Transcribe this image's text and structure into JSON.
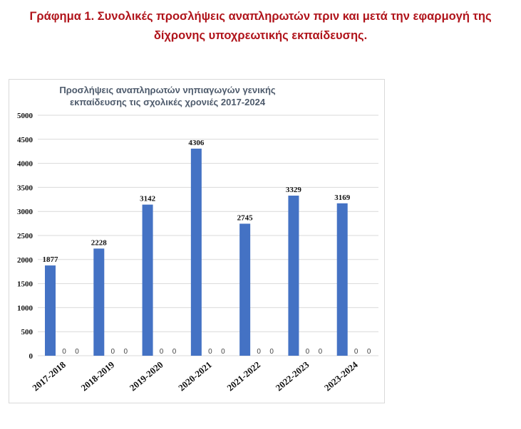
{
  "caption": {
    "line1": "Γράφημα 1. Συνολικές προσλήψεις αναπληρωτών πριν και μετά την εφαρμογή της",
    "line2": "δίχρονης υποχρεωτικής εκπαίδευσης."
  },
  "colors": {
    "caption": "#b0141b",
    "bar": "#4472c4",
    "title": "#4d5a6b"
  },
  "chart_data": {
    "type": "bar",
    "title": [
      "Προσλήψεις αναπληρωτών νηπιαγωγών γενικής",
      "εκπαίδευσης τις σχολικές χρονιές 2017-2024"
    ],
    "categories": [
      "2017-2018",
      "2018-2019",
      "2019-2020",
      "2020-2021",
      "2021-2022",
      "2022-2023",
      "2023-2024"
    ],
    "series": [
      {
        "values": [
          1877,
          2228,
          3142,
          4306,
          2745,
          3329,
          3169
        ]
      },
      {
        "values": [
          0,
          0,
          0,
          0,
          0,
          0,
          0
        ]
      },
      {
        "values": [
          0,
          0,
          0,
          0,
          0,
          0,
          0
        ]
      }
    ],
    "ylim": [
      0,
      5000
    ],
    "yticks": [
      0,
      500,
      1000,
      1500,
      2000,
      2500,
      3000,
      3500,
      4000,
      4500,
      5000
    ],
    "grid": true,
    "legend": "none"
  }
}
